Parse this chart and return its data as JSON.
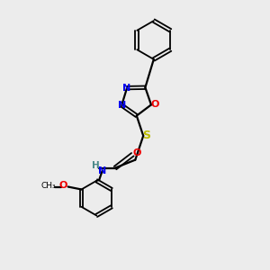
{
  "bg_color": "#ececec",
  "bond_color": "#000000",
  "N_color": "#0000ee",
  "O_color": "#ee0000",
  "S_color": "#bbbb00",
  "H_color": "#4a8888",
  "figsize": [
    3.0,
    3.0
  ],
  "dpi": 100,
  "xlim": [
    0,
    10
  ],
  "ylim": [
    0,
    10
  ]
}
